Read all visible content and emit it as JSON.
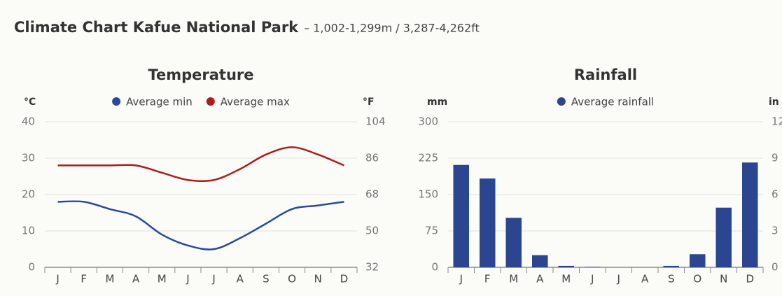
{
  "header": {
    "title": "Climate Chart Kafue National Park",
    "subtitle": "– 1,002-1,299m / 3,287-4,262ft"
  },
  "chart_data": [
    {
      "type": "line",
      "title": "Temperature",
      "y_label": "°C",
      "y2_label": "°F",
      "categories": [
        "J",
        "F",
        "M",
        "A",
        "M",
        "J",
        "J",
        "A",
        "S",
        "O",
        "N",
        "D"
      ],
      "series": [
        {
          "name": "Average min",
          "color": "#2a4a9b",
          "values": [
            18,
            18,
            16,
            14,
            9,
            6,
            5,
            8,
            12,
            16,
            17,
            18
          ]
        },
        {
          "name": "Average max",
          "color": "#b01c1c",
          "values": [
            28,
            28,
            28,
            28,
            26,
            24,
            24,
            27,
            31,
            33,
            31,
            28
          ]
        }
      ],
      "ylim": [
        0,
        40
      ],
      "yticks": [
        0,
        10,
        20,
        30,
        40
      ],
      "y2lim": [
        32,
        104
      ],
      "y2ticks": [
        32,
        50,
        68,
        86,
        104
      ],
      "grid": true
    },
    {
      "type": "bar",
      "title": "Rainfall",
      "y_label": "mm",
      "y2_label": "in",
      "categories": [
        "J",
        "F",
        "M",
        "A",
        "M",
        "J",
        "J",
        "A",
        "S",
        "O",
        "N",
        "D"
      ],
      "series": [
        {
          "name": "Average rainfall",
          "color": "#2b4591",
          "values": [
            211,
            183,
            102,
            25,
            3,
            1,
            0,
            0,
            3,
            27,
            123,
            216
          ]
        }
      ],
      "ylim": [
        0,
        300
      ],
      "yticks": [
        0,
        75,
        150,
        225,
        300
      ],
      "y2lim": [
        0,
        12
      ],
      "y2ticks": [
        0,
        3,
        6,
        9,
        12
      ],
      "grid": true
    }
  ]
}
